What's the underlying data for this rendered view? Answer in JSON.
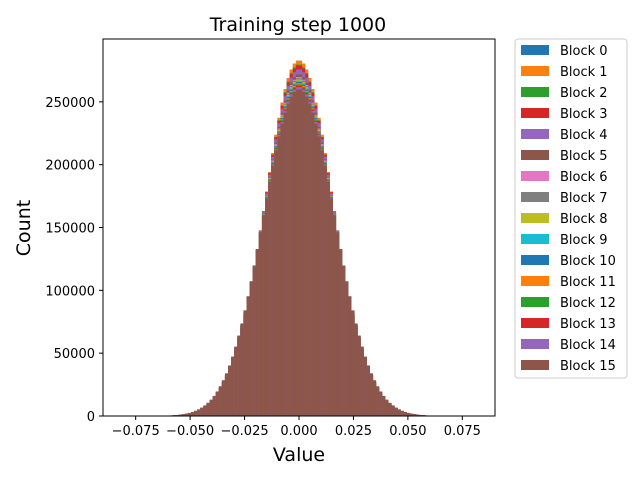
{
  "chart_data": {
    "type": "histogram",
    "title": "Training step 1000",
    "xlabel": "Value",
    "ylabel": "Count",
    "xlim": [
      -0.09,
      0.09
    ],
    "ylim": [
      0,
      300000
    ],
    "xticks": [
      -0.075,
      -0.05,
      -0.025,
      0.0,
      0.025,
      0.05,
      0.075
    ],
    "xtick_labels": [
      "−0.075",
      "−0.050",
      "−0.025",
      "0.000",
      "0.025",
      "0.050",
      "0.075"
    ],
    "yticks": [
      0,
      50000,
      100000,
      150000,
      200000,
      250000
    ],
    "ytick_labels": [
      "0",
      "50000",
      "100000",
      "150000",
      "200000",
      "250000"
    ],
    "grid": false,
    "legend_position": "outside right",
    "distribution": "approximately normal, mean 0.0, std ~0.0155",
    "bins": 120,
    "bin_range": [
      -0.085,
      0.085
    ],
    "series": [
      {
        "name": "Block 0",
        "color": "#1f77b4",
        "peak": 283000,
        "std": 0.0155
      },
      {
        "name": "Block 1",
        "color": "#ff7f0e",
        "peak": 283000,
        "std": 0.0155
      },
      {
        "name": "Block 2",
        "color": "#2ca02c",
        "peak": 280000,
        "std": 0.0156
      },
      {
        "name": "Block 3",
        "color": "#d62728",
        "peak": 279000,
        "std": 0.0157
      },
      {
        "name": "Block 4",
        "color": "#9467bd",
        "peak": 276000,
        "std": 0.0158
      },
      {
        "name": "Block 5",
        "color": "#8c564b",
        "peak": 272000,
        "std": 0.0159
      },
      {
        "name": "Block 6",
        "color": "#e377c2",
        "peak": 270000,
        "std": 0.016
      },
      {
        "name": "Block 7",
        "color": "#7f7f7f",
        "peak": 269000,
        "std": 0.016
      },
      {
        "name": "Block 8",
        "color": "#bcbd22",
        "peak": 268000,
        "std": 0.0161
      },
      {
        "name": "Block 9",
        "color": "#17becf",
        "peak": 267000,
        "std": 0.0161
      },
      {
        "name": "Block 10",
        "color": "#1f77b4",
        "peak": 266000,
        "std": 0.0162
      },
      {
        "name": "Block 11",
        "color": "#ff7f0e",
        "peak": 265000,
        "std": 0.0162
      },
      {
        "name": "Block 12",
        "color": "#2ca02c",
        "peak": 264000,
        "std": 0.0163
      },
      {
        "name": "Block 13",
        "color": "#d62728",
        "peak": 263000,
        "std": 0.0163
      },
      {
        "name": "Block 14",
        "color": "#9467bd",
        "peak": 262000,
        "std": 0.0164
      },
      {
        "name": "Block 15",
        "color": "#8c564b",
        "peak": 260000,
        "std": 0.0165
      }
    ]
  }
}
